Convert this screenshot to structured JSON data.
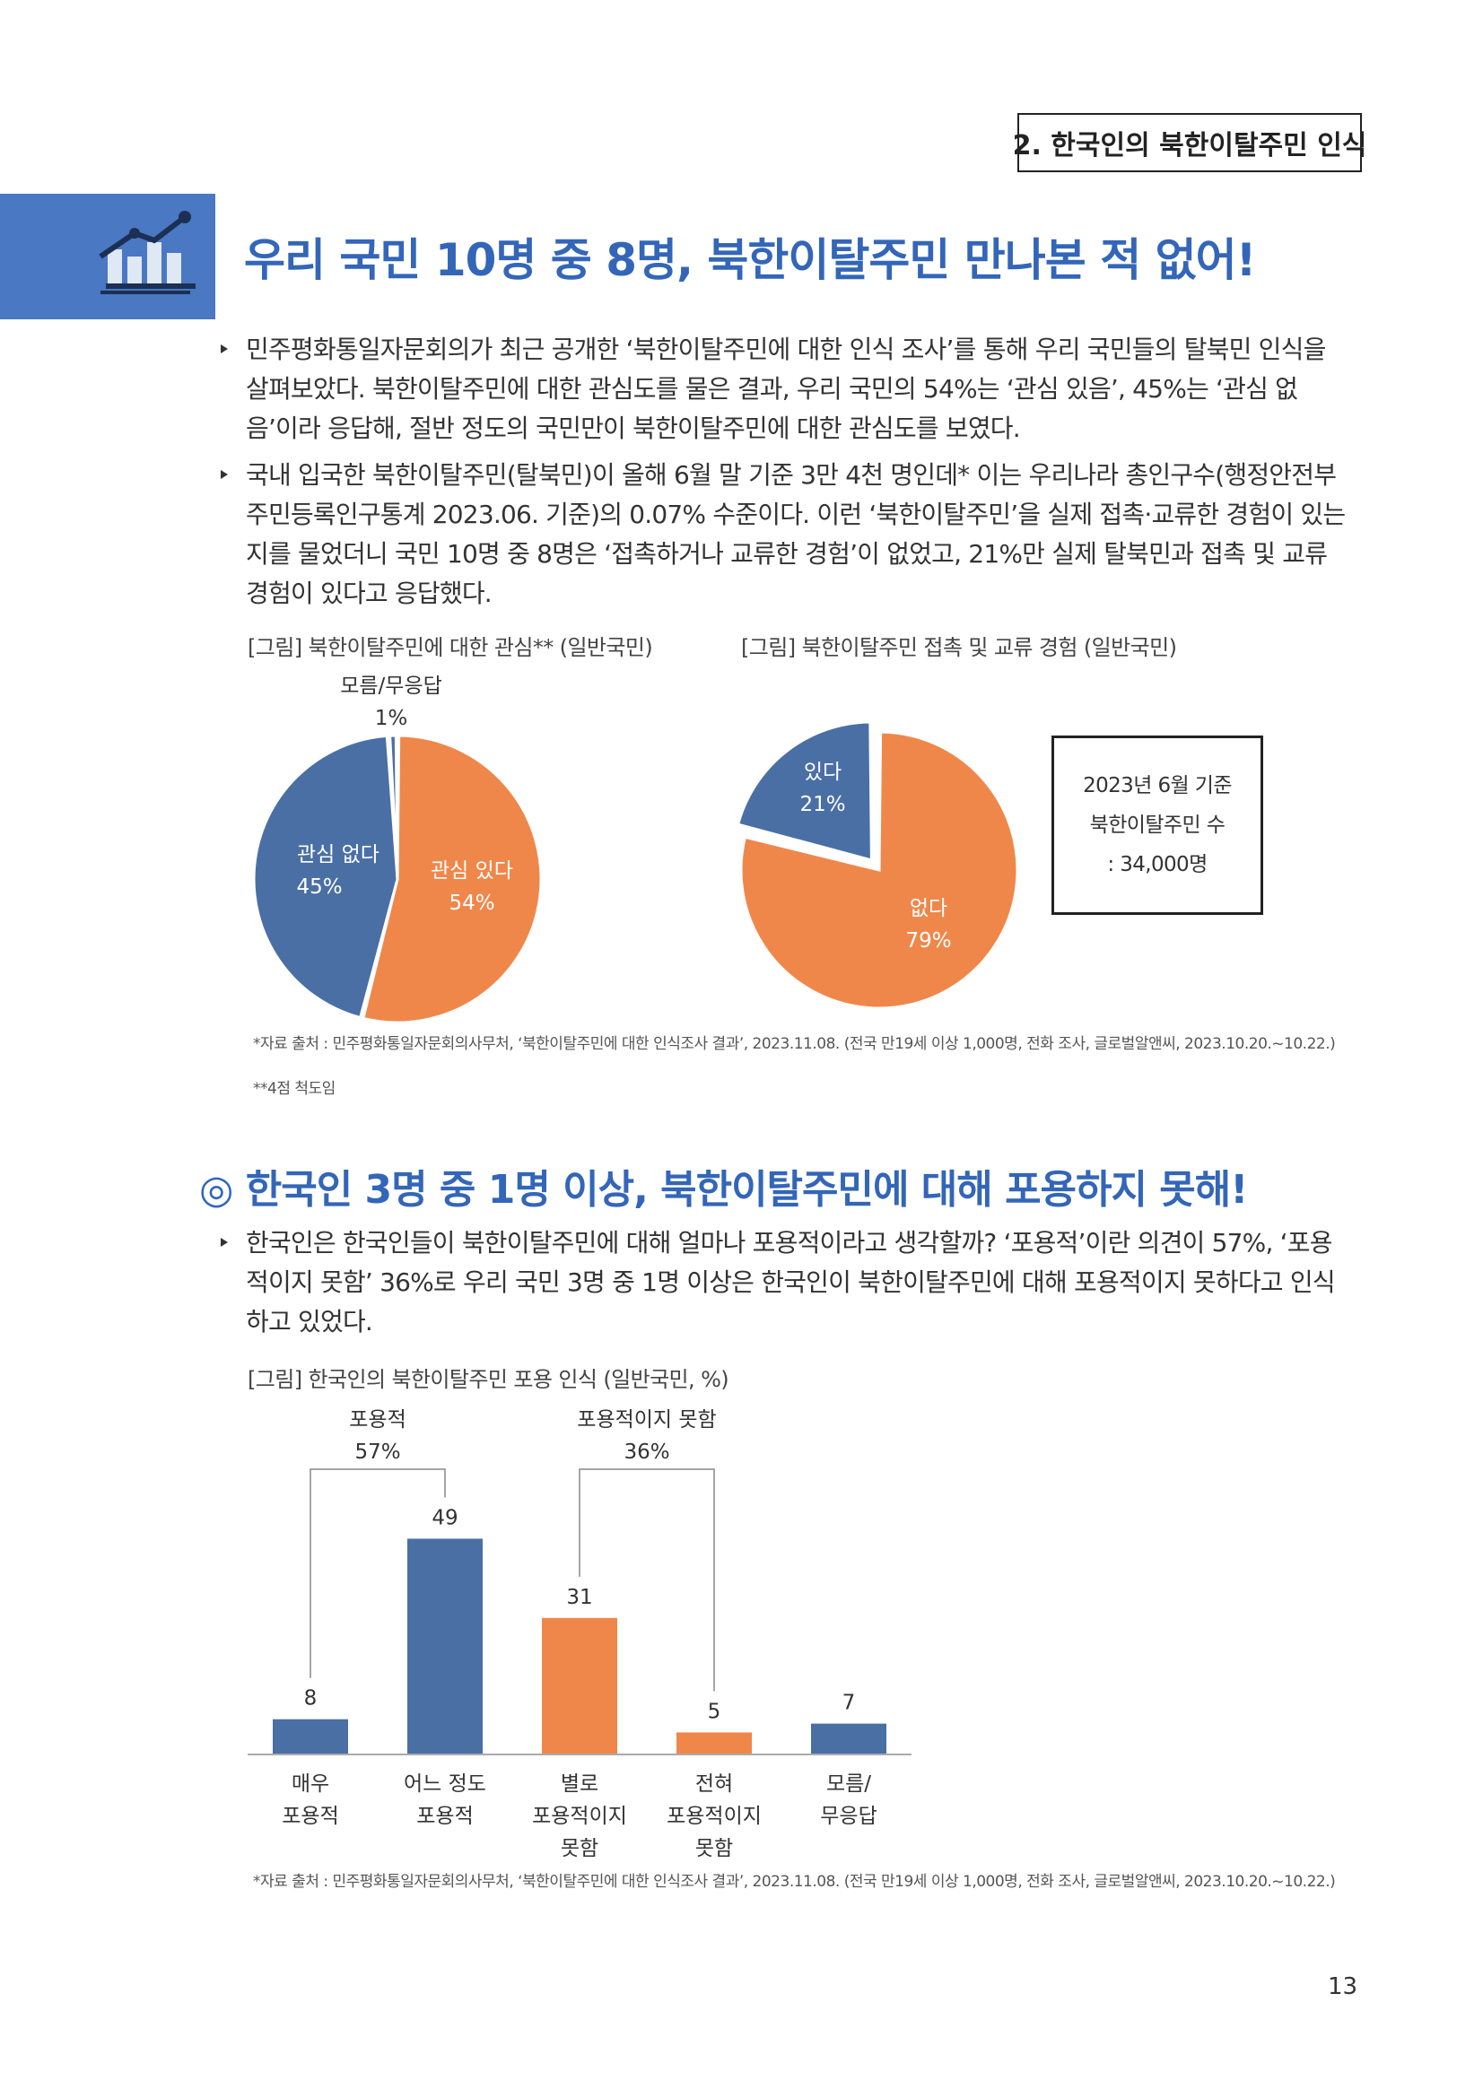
{
  "section_tag": "2. 한국인의 북한이탈주민 인식",
  "icon": "bar-chart-icon",
  "headline1": "우리 국민 10명 중 8명, 북한이탈주민 만나본 적 없어!",
  "bullets1": [
    "민주평화통일자문회의가 최근 공개한 ‘북한이탈주민에 대한 인식 조사’를 통해 우리 국민들의 탈북민 인식을 살펴보았다. 북한이탈주민에 대한 관심도를 물은 결과, 우리 국민의 54%는 ‘관심 있음’, 45%는 ‘관심 없음’이라 응답해, 절반 정도의 국민만이 북한이탈주민에 대한 관심도를 보였다.",
    "국내 입국한 북한이탈주민(탈북민)이 올해 6월 말 기준 3만 4천 명인데* 이는 우리나라 총인구수(행정안전부 주민등록인구통계 2023.06. 기준)의 0.07% 수준이다. 이런 ‘북한이탈주민’을 실제 접촉·교류한 경험이 있는지를 물었더니 국민 10명 중 8명은 ‘접촉하거나 교류한 경험’이 없었고, 21%만 실제 탈북민과 접촉 및 교류 경험이 있다고 응답했다."
  ],
  "chart1_caption": "[그림] 북한이탈주민에 대한 관심** (일반국민)",
  "chart2_caption": "[그림] 북한이탈주민 접촉 및 교류 경험 (일반국민)",
  "note_box": {
    "line1": "2023년 6월 기준",
    "line2": "북한이탈주민 수",
    "line3": ": 34,000명"
  },
  "source1": "*자료 출처 : 민주평화통일자문회의사무처, ‘북한이탈주민에 대한 인식조사 결과’, 2023.11.08. (전국 만19세 이상 1,000명, 전화 조사, 글로벌알앤씨, 2023.10.20.~10.22.)",
  "footnote1": "**4점 척도임",
  "headline2": "한국인 3명 중 1명 이상, 북한이탈주민에 대해 포용하지 못해!",
  "headline2_mark": "◎",
  "bullets2": [
    "한국인은 한국인들이 북한이탈주민에 대해 얼마나 포용적이라고 생각할까? ‘포용적’이란 의견이 57%, ‘포용적이지 못함’ 36%로 우리 국민 3명 중 1명 이상은 한국인이 북한이탈주민에 대해 포용적이지 못하다고 인식하고 있었다."
  ],
  "chart3_caption": "[그림] 한국인의 북한이탈주민 포용 인식 (일반국민, %)",
  "source2": "*자료 출처 : 민주평화통일자문회의사무처, ‘북한이탈주민에 대한 인식조사 결과’, 2023.11.08. (전국 만19세 이상 1,000명, 전화 조사, 글로벌알앤씨, 2023.10.20.~10.22.)",
  "page_number": "13",
  "colors": {
    "blue": "#4a6fa5",
    "orange": "#f0874a",
    "headline": "#3366b8"
  },
  "chart_data": [
    {
      "type": "pie",
      "title": "",
      "slices": [
        {
          "label": "관심 있다",
          "value": 54,
          "display": "54%",
          "color": "#f0874a"
        },
        {
          "label": "관심 없다",
          "value": 45,
          "display": "45%",
          "color": "#4a6fa5"
        },
        {
          "label": "모름/무응답",
          "value": 1,
          "display": "1%",
          "color": "#4a6fa5"
        }
      ]
    },
    {
      "type": "pie",
      "title": "",
      "slices": [
        {
          "label": "없다",
          "value": 79,
          "display": "79%",
          "color": "#f0874a"
        },
        {
          "label": "있다",
          "value": 21,
          "display": "21%",
          "color": "#4a6fa5"
        }
      ]
    },
    {
      "type": "bar",
      "title": "",
      "categories": [
        "매우\n포용적",
        "어느 정도\n포용적",
        "별로\n포용적이지\n못함",
        "전혀\n포용적이지\n못함",
        "모름/\n무응답"
      ],
      "values": [
        8,
        49,
        31,
        5,
        7
      ],
      "colors": [
        "#4a6fa5",
        "#4a6fa5",
        "#f0874a",
        "#f0874a",
        "#4a6fa5"
      ],
      "ylim": [
        0,
        55
      ],
      "groups": [
        {
          "label": "포용적",
          "value": "57%",
          "from": 0,
          "to": 1
        },
        {
          "label": "포용적이지 못함",
          "value": "36%",
          "from": 2,
          "to": 3
        }
      ]
    }
  ]
}
